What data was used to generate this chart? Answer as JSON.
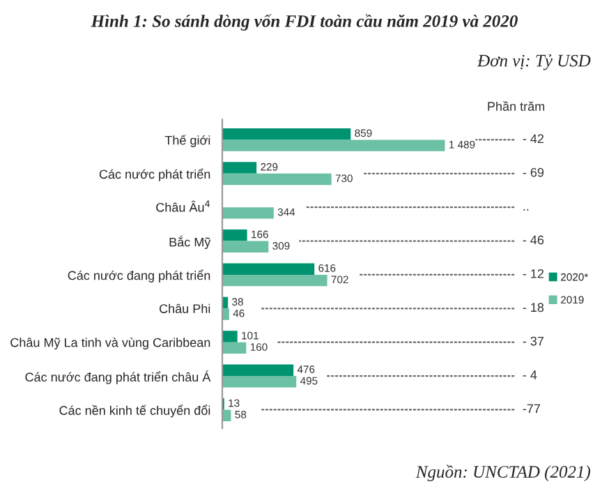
{
  "chart_data": {
    "type": "bar",
    "orientation": "horizontal",
    "title": "Hình 1: So sánh dòng vốn FDI toàn cầu năm 2019 và 2020",
    "subtitle": "Đơn vị: Tỷ USD",
    "categories": [
      "Thế giới",
      "Các nước phát triển",
      "Châu Âu$^{4}$",
      "Bắc Mỹ",
      "Các nước đang phát triển",
      "Châu Phi",
      "Châu Mỹ La tinh và vùng Caribbean",
      "Các nước đang phát triển châu Á",
      "Các nền kinh tế chuyển đổi"
    ],
    "series": [
      {
        "name": "2020*",
        "color": "#00936f",
        "values": [
          859,
          229,
          null,
          166,
          616,
          38,
          101,
          476,
          13
        ],
        "value_labels": [
          "859",
          "229",
          null,
          "166",
          "616",
          "38",
          "101",
          "476",
          "13"
        ]
      },
      {
        "name": "2019",
        "color": "#6cc0a5",
        "values": [
          1489,
          730,
          344,
          309,
          702,
          46,
          160,
          495,
          58
        ],
        "value_labels": [
          "1 489",
          "730",
          "344",
          "309",
          "702",
          "46",
          "160",
          "495",
          "58"
        ]
      }
    ],
    "legend": "right",
    "annotations": [
      "Phần trăm",
      "- 42",
      "- 69",
      "..",
      "- 46",
      "- 12",
      "- 18",
      "- 37",
      "- 4",
      "-77",
      "Nguồn: UNCTAD (2021)"
    ]
  }
}
